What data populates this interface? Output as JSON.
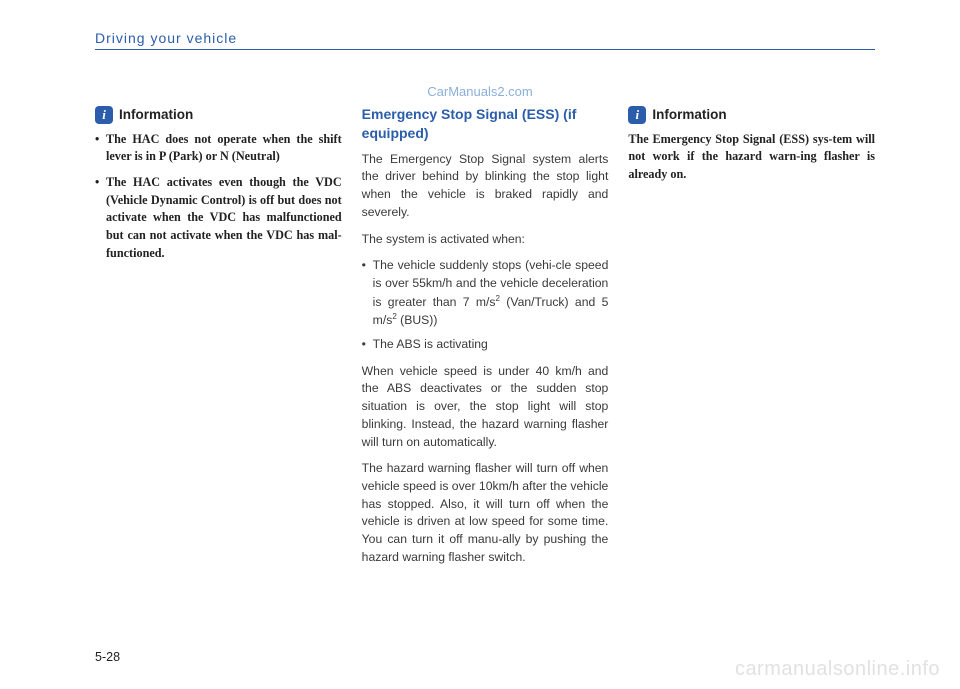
{
  "header": {
    "title": "Driving your vehicle"
  },
  "watermark_top": "CarManuals2.com",
  "col1": {
    "info_label": "Information",
    "bullets": [
      "The HAC does not operate when the shift lever is in P (Park) or N (Neutral)",
      "The HAC activates even though the VDC (Vehicle Dynamic Control) is off but does not activate when the VDC has malfunctioned but can not activate when the VDC has mal-functioned."
    ]
  },
  "col2": {
    "heading": "Emergency Stop Signal (ESS) (if equipped)",
    "p1": "The Emergency Stop Signal system alerts the driver behind by blinking the stop light when the vehicle is braked rapidly and severely.",
    "p2": "The system is activated when:",
    "b1_pre": "The vehicle suddenly stops (vehi-cle speed is over 55km/h and the vehicle deceleration is greater than 7 m/s",
    "b1_mid": " (Van/Truck) and 5 m/s",
    "b1_post": " (BUS))",
    "b2": "The ABS is activating",
    "p3": "When vehicle speed is under 40 km/h and the ABS deactivates or the sudden stop situation is over, the stop light will stop blinking. Instead, the hazard warning flasher will turn on automatically.",
    "p4": "The hazard warning flasher will turn off when vehicle speed is over 10km/h after the vehicle has stopped. Also, it will turn off when the vehicle is driven at low speed for some time. You can turn it off manu-ally by pushing the hazard warning flasher switch."
  },
  "col3": {
    "info_label": "Information",
    "note": "The Emergency Stop Signal (ESS) sys-tem will not work if the hazard warn-ing flasher is already on."
  },
  "page_num": "5-28",
  "watermark_bottom": "carmanualsonline.info",
  "colors": {
    "accent": "#2b5dab",
    "text": "#222222",
    "body_text": "#3a3a3a",
    "watermark_top": "#3b7ac0",
    "watermark_bottom": "#bdbdbd",
    "background": "#ffffff"
  },
  "typography": {
    "header_fontsize": 14,
    "heading_fontsize": 14,
    "body_fontsize": 12.2,
    "info_label_fontsize": 13.5,
    "watermark_bottom_fontsize": 20
  }
}
